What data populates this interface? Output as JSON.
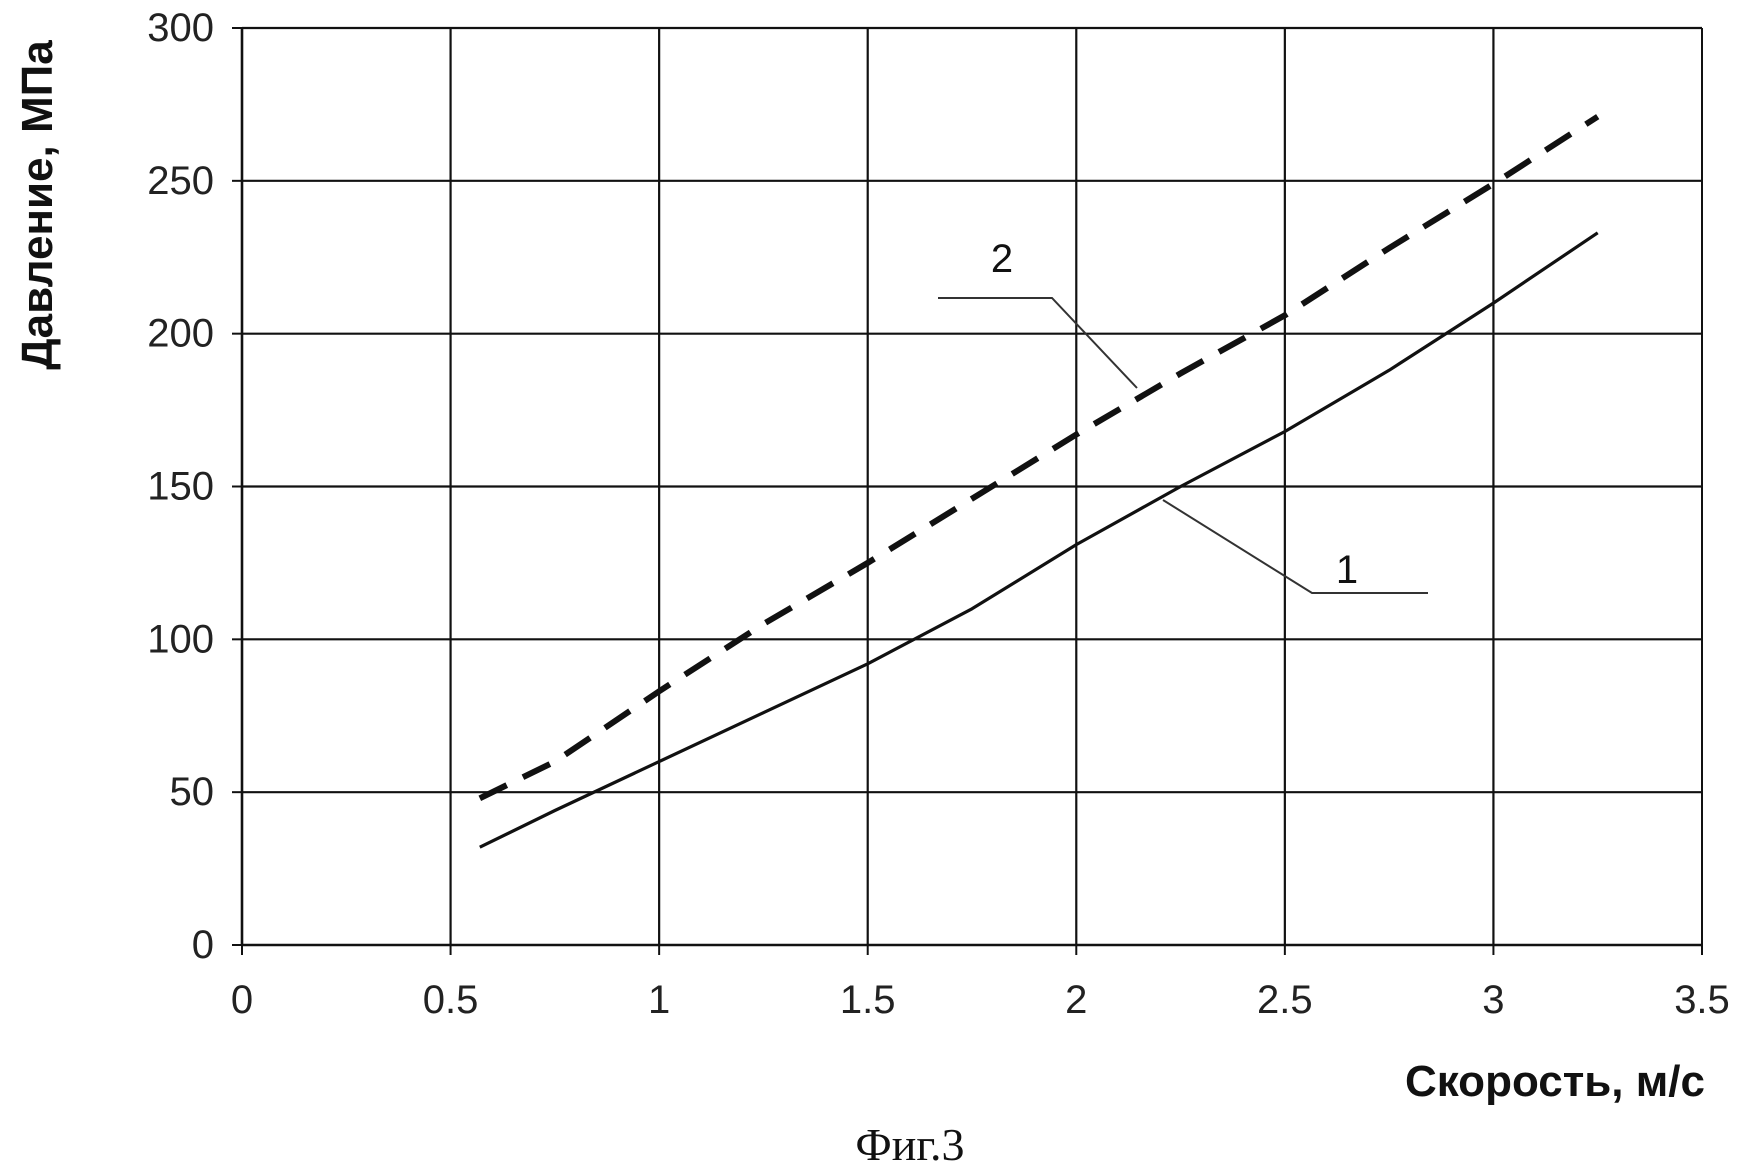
{
  "chart_data": {
    "type": "line",
    "xlabel": "Скорость, м/с",
    "ylabel": "Давление, МПа",
    "xlim": [
      0,
      3.5
    ],
    "ylim": [
      0,
      300
    ],
    "x_ticks": [
      "0",
      "0.5",
      "1",
      "1.5",
      "2",
      "2.5",
      "3",
      "3.5"
    ],
    "y_ticks": [
      "0",
      "50",
      "100",
      "150",
      "200",
      "250",
      "300"
    ],
    "grid": true,
    "series": [
      {
        "name": "1",
        "style": "solid",
        "color": "#111111",
        "x": [
          0.57,
          0.75,
          1.0,
          1.25,
          1.5,
          1.75,
          2.0,
          2.25,
          2.5,
          2.75,
          3.0,
          3.25
        ],
        "y": [
          32,
          44,
          60,
          76,
          92,
          110,
          131,
          150,
          168,
          188,
          210,
          233
        ]
      },
      {
        "name": "2",
        "style": "dashed",
        "color": "#111111",
        "x": [
          0.57,
          0.75,
          1.0,
          1.25,
          1.5,
          1.75,
          2.0,
          2.25,
          2.5,
          2.75,
          3.0,
          3.25
        ],
        "y": [
          48,
          60,
          83,
          105,
          125,
          146,
          167,
          187,
          206,
          228,
          249,
          271
        ]
      }
    ],
    "caption": "Фиг.3"
  }
}
